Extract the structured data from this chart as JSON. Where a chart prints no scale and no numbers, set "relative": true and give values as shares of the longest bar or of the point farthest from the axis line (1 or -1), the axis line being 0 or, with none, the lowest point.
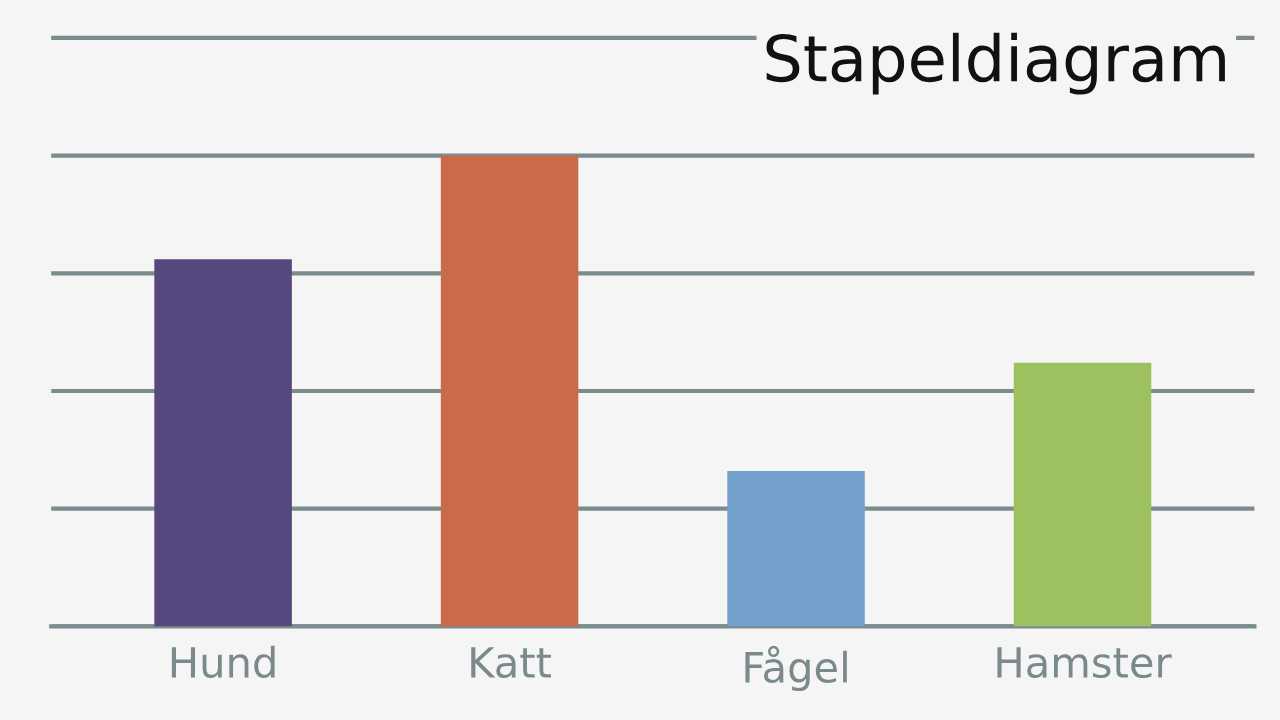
{
  "chart_data": {
    "type": "bar",
    "title": "Stapeldiagram",
    "categories": [
      "Hund",
      "Katt",
      "Fågel",
      "Hamster"
    ],
    "values": [
      0.78,
      1,
      0.33,
      0.56
    ],
    "colors": [
      "#56477e",
      "#c96b4b",
      "#74a0cc",
      "#9dc15e"
    ],
    "relative": true,
    "grid": "y",
    "legend": false
  }
}
